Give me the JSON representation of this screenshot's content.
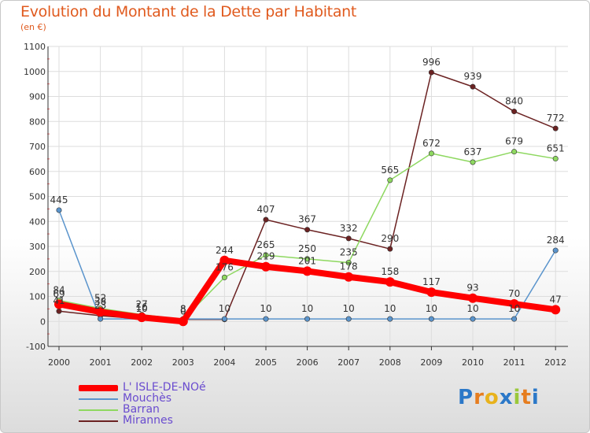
{
  "chart_data": {
    "type": "line",
    "title": "Evolution du Montant de la Dette par Habitant",
    "subtitle": "(en €)",
    "xlabel": "",
    "ylabel": "",
    "ylim": [
      -100,
      1100
    ],
    "yticks": [
      -100,
      0,
      100,
      200,
      300,
      400,
      500,
      600,
      700,
      800,
      900,
      1000,
      1100
    ],
    "categories": [
      "2000",
      "2001",
      "2002",
      "2003",
      "2004",
      "2005",
      "2006",
      "2007",
      "2008",
      "2009",
      "2010",
      "2011",
      "2012"
    ],
    "series": [
      {
        "name": "Mirannes",
        "color": "#6b2222",
        "values": [
          41,
          23,
          10,
          8,
          8,
          407,
          367,
          332,
          290,
          996,
          939,
          840,
          772
        ],
        "labels": [
          "41",
          "23",
          "10",
          "8",
          "",
          "407",
          "367",
          "332",
          "290",
          "996",
          "939",
          "840",
          "772"
        ]
      },
      {
        "name": "Barran",
        "color": "#8ed860",
        "values": [
          84,
          52,
          27,
          8,
          176,
          265,
          250,
          235,
          565,
          672,
          637,
          679,
          651
        ],
        "labels": [
          "84",
          "52",
          "27",
          "8",
          "176",
          "265",
          "250",
          "235",
          "565",
          "672",
          "637",
          "679",
          "651"
        ]
      },
      {
        "name": "Mouchès",
        "color": "#5a94cc",
        "values": [
          445,
          10,
          10,
          10,
          10,
          10,
          10,
          10,
          10,
          10,
          10,
          10,
          284
        ],
        "labels": [
          "445",
          "",
          "",
          "",
          "10",
          "10",
          "10",
          "10",
          "10",
          "10",
          "10",
          "10",
          "284"
        ]
      },
      {
        "name": "L' ISLE-DE-NOé",
        "color": "#ff0000",
        "values": [
          69,
          38,
          16,
          0,
          244,
          219,
          201,
          178,
          158,
          117,
          93,
          70,
          47
        ],
        "labels": [
          "69",
          "38",
          "16",
          "0",
          "244",
          "219",
          "201",
          "178",
          "158",
          "117",
          "93",
          "70",
          "47"
        ]
      }
    ],
    "legend": [
      "L' ISLE-DE-NOé",
      "Mouchès",
      "Barran",
      "Mirannes"
    ],
    "legend_position": "bottom-left"
  },
  "logo": {
    "letters": [
      "P",
      "r",
      "o",
      "x",
      "i",
      "t",
      "i"
    ],
    "colors": [
      "#2b78c8",
      "#e67d1f",
      "#e8b21c",
      "#2b78c8",
      "#9ac83a",
      "#e67d1f",
      "#2b78c8"
    ]
  }
}
